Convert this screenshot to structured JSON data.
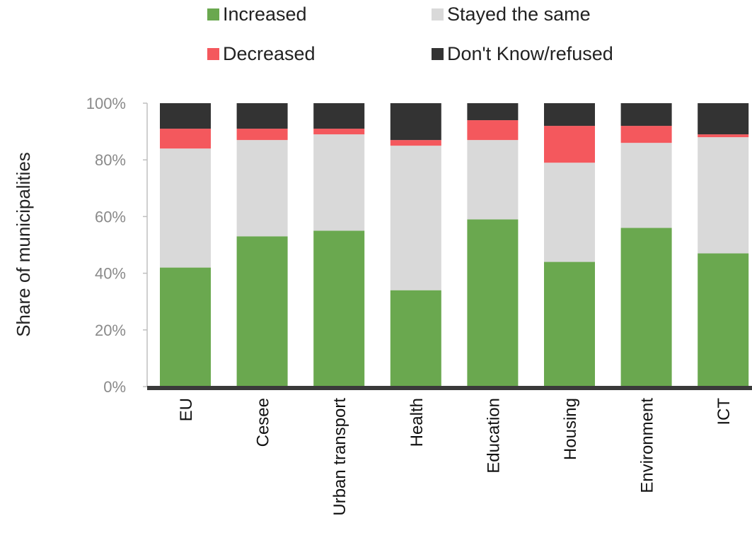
{
  "chart_data": {
    "type": "bar",
    "stacked": true,
    "ylabel": "Share of municipalities",
    "xlabel": "",
    "ylim": [
      0,
      100
    ],
    "yticks": [
      "0%",
      "20%",
      "40%",
      "60%",
      "80%",
      "100%"
    ],
    "categories": [
      "EU",
      "Cesee",
      "Urban transport",
      "Health",
      "Education",
      "Housing",
      "Environment",
      "ICT"
    ],
    "legend_position": "top",
    "series": [
      {
        "name": "Increased",
        "color": "#6aa84f",
        "values": [
          42,
          53,
          55,
          34,
          59,
          44,
          56,
          47
        ]
      },
      {
        "name": "Stayed the same",
        "color": "#d9d9d9",
        "values": [
          42,
          34,
          34,
          51,
          28,
          35,
          30,
          41
        ]
      },
      {
        "name": "Decreased",
        "color": "#f4585d",
        "values": [
          7,
          4,
          2,
          2,
          7,
          13,
          6,
          1
        ]
      },
      {
        "name": "Don't Know/refused",
        "color": "#333333",
        "values": [
          9,
          9,
          9,
          13,
          6,
          8,
          8,
          11
        ]
      }
    ]
  }
}
